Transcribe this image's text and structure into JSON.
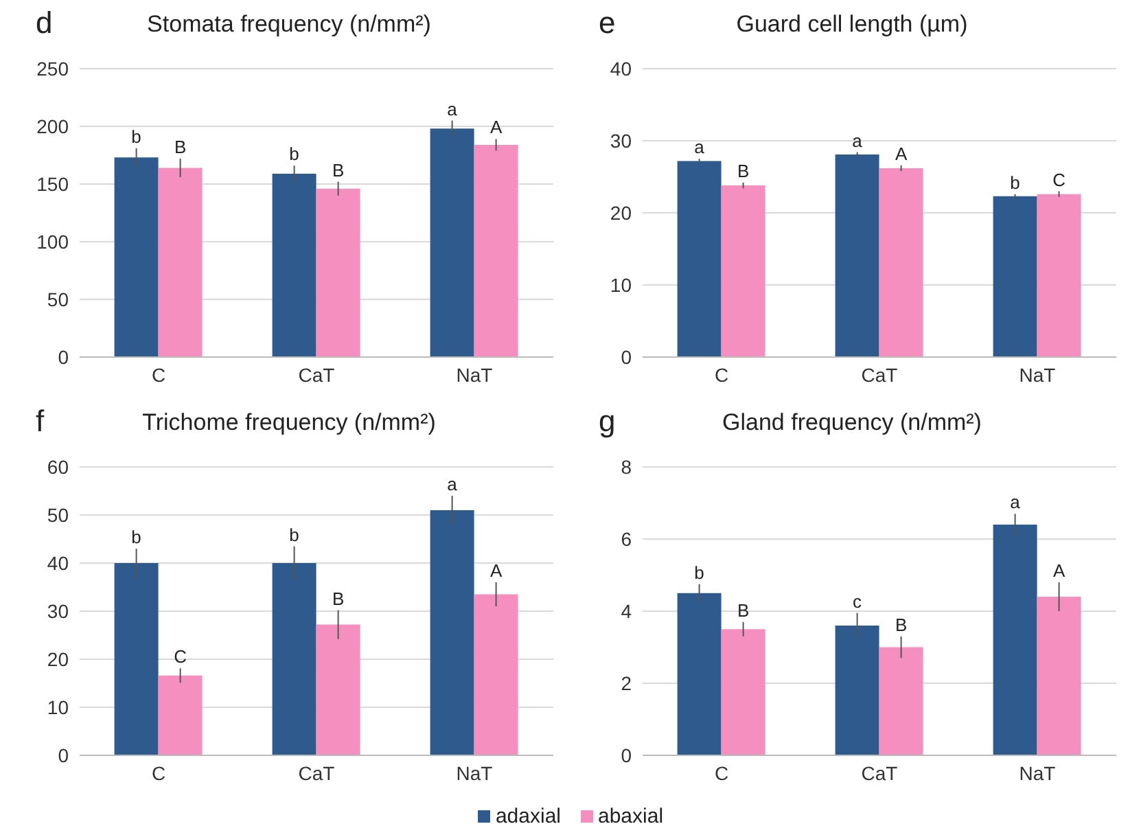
{
  "chart_data": [
    {
      "type": "bar",
      "title": "Stomata frequency (n/mm²)",
      "annotations": [
        "d"
      ],
      "categories": [
        "C",
        "CaT",
        "NaT"
      ],
      "ylim": [
        0,
        250
      ],
      "yticks": [
        0,
        50,
        100,
        150,
        200,
        250
      ],
      "grid": "y",
      "series": [
        {
          "color": "#2e5a8e",
          "values": [
            173,
            159,
            198
          ],
          "errors": [
            8,
            7,
            7
          ],
          "value_labels": [
            "b",
            "b",
            "a"
          ]
        },
        {
          "color": "#f48fc0",
          "values": [
            164,
            146,
            184
          ],
          "errors": [
            8,
            6,
            5
          ],
          "value_labels": [
            "B",
            "B",
            "A"
          ]
        }
      ]
    },
    {
      "type": "bar",
      "title": "Guard cell length (µm)",
      "annotations": [
        "e"
      ],
      "categories": [
        "C",
        "CaT",
        "NaT"
      ],
      "ylim": [
        0,
        40
      ],
      "yticks": [
        0,
        10,
        20,
        30,
        40
      ],
      "grid": "y",
      "series": [
        {
          "color": "#2e5a8e",
          "values": [
            27.2,
            28.1,
            22.3
          ],
          "errors": [
            0.3,
            0.3,
            0.3
          ],
          "value_labels": [
            "a",
            "a",
            "b"
          ]
        },
        {
          "color": "#f48fc0",
          "values": [
            23.8,
            26.2,
            22.6
          ],
          "errors": [
            0.4,
            0.4,
            0.4
          ],
          "value_labels": [
            "B",
            "A",
            "C"
          ]
        }
      ]
    },
    {
      "type": "bar",
      "title": "Trichome frequency (n/mm²)",
      "annotations": [
        "f"
      ],
      "categories": [
        "C",
        "CaT",
        "NaT"
      ],
      "ylim": [
        0,
        60
      ],
      "yticks": [
        0,
        10,
        20,
        30,
        40,
        50,
        60
      ],
      "grid": "y",
      "series": [
        {
          "color": "#2e5a8e",
          "values": [
            40,
            40,
            51
          ],
          "errors": [
            3,
            3.5,
            3
          ],
          "value_labels": [
            "b",
            "b",
            "a"
          ]
        },
        {
          "color": "#f48fc0",
          "values": [
            16.6,
            27.2,
            33.5
          ],
          "errors": [
            1.5,
            3,
            2.5
          ],
          "value_labels": [
            "C",
            "B",
            "A"
          ]
        }
      ]
    },
    {
      "type": "bar",
      "title": "Gland frequency (n/mm²)",
      "annotations": [
        "g"
      ],
      "categories": [
        "C",
        "CaT",
        "NaT"
      ],
      "ylim": [
        0,
        8
      ],
      "yticks": [
        0,
        2,
        4,
        6,
        8
      ],
      "grid": "y",
      "legend": "bottom",
      "series": [
        {
          "name": "adaxial",
          "color": "#2e5a8e",
          "values": [
            4.5,
            3.6,
            6.4
          ],
          "errors": [
            0.25,
            0.35,
            0.3
          ],
          "value_labels": [
            "b",
            "c",
            "a"
          ]
        },
        {
          "name": "abaxial",
          "color": "#f48fc0",
          "values": [
            3.5,
            3.0,
            4.4
          ],
          "errors": [
            0.2,
            0.3,
            0.4
          ],
          "value_labels": [
            "B",
            "B",
            "A"
          ]
        }
      ]
    }
  ]
}
